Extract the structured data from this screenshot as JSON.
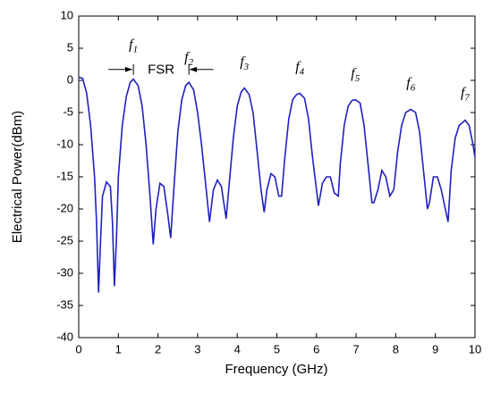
{
  "chart_data": {
    "type": "line",
    "x_label": "Frequency (GHz)",
    "y_label": "Electrical Power(dBm)",
    "xlim": [
      0,
      10
    ],
    "xticks": [
      0,
      1,
      2,
      3,
      4,
      5,
      6,
      7,
      8,
      9,
      10
    ],
    "ylim": [
      -40,
      10
    ],
    "yticks": [
      -40,
      -35,
      -30,
      -25,
      -20,
      -15,
      -10,
      -5,
      0,
      5,
      10
    ],
    "series": [
      {
        "color": "#2020c0",
        "x": [
          0,
          0.1,
          0.2,
          0.3,
          0.4,
          0.45,
          0.5,
          0.55,
          0.6,
          0.7,
          0.8,
          0.85,
          0.9,
          0.95,
          1.0,
          1.1,
          1.2,
          1.3,
          1.38,
          1.5,
          1.6,
          1.7,
          1.8,
          1.88,
          1.95,
          2.05,
          2.15,
          2.25,
          2.32,
          2.4,
          2.5,
          2.6,
          2.7,
          2.78,
          2.9,
          3.0,
          3.1,
          3.2,
          3.3,
          3.4,
          3.5,
          3.6,
          3.72,
          3.8,
          3.9,
          4.0,
          4.1,
          4.18,
          4.3,
          4.4,
          4.5,
          4.6,
          4.68,
          4.75,
          4.85,
          4.95,
          5.05,
          5.12,
          5.2,
          5.3,
          5.4,
          5.5,
          5.58,
          5.7,
          5.8,
          5.9,
          6.0,
          6.05,
          6.15,
          6.25,
          6.35,
          6.45,
          6.55,
          6.6,
          6.7,
          6.8,
          6.9,
          6.98,
          7.1,
          7.2,
          7.3,
          7.4,
          7.45,
          7.55,
          7.65,
          7.75,
          7.85,
          7.95,
          8.05,
          8.15,
          8.25,
          8.38,
          8.5,
          8.6,
          8.7,
          8.8,
          8.85,
          8.95,
          9.05,
          9.15,
          9.25,
          9.32,
          9.4,
          9.5,
          9.6,
          9.7,
          9.75,
          9.85,
          9.95,
          10
        ],
        "values": [
          0.5,
          0.3,
          -2,
          -7,
          -15,
          -22,
          -33,
          -25,
          -18,
          -15.8,
          -16.5,
          -22,
          -32,
          -25,
          -15,
          -7,
          -2.5,
          -0.3,
          0.2,
          -0.8,
          -4,
          -10,
          -18,
          -25.5,
          -20,
          -16,
          -16.5,
          -21,
          -24.5,
          -17,
          -8,
          -3,
          -0.8,
          -0.3,
          -1.5,
          -5,
          -10,
          -16,
          -22,
          -17,
          -15.5,
          -16.5,
          -21.5,
          -16,
          -9,
          -4,
          -1.8,
          -1.2,
          -2.2,
          -5,
          -11,
          -17,
          -20.5,
          -17,
          -14.5,
          -15,
          -18,
          -18,
          -12,
          -6,
          -3,
          -2.2,
          -2,
          -2.8,
          -6,
          -12,
          -17,
          -19.5,
          -16,
          -15,
          -15,
          -17.5,
          -18,
          -13,
          -7,
          -4,
          -3.1,
          -3,
          -3.5,
          -7,
          -13,
          -19,
          -19,
          -17,
          -14,
          -15,
          -18,
          -17,
          -11,
          -7,
          -5,
          -4.5,
          -5,
          -8,
          -14,
          -20,
          -19,
          -15,
          -15,
          -17,
          -20,
          -22,
          -14,
          -9,
          -7,
          -6.5,
          -6.2,
          -7,
          -10,
          -12
        ]
      }
    ],
    "annotations": [
      {
        "text": "f",
        "subscript": "1",
        "x": 1.38,
        "y": 5.5
      },
      {
        "text": "f",
        "subscript": "2",
        "x": 2.78,
        "y": 3.5
      },
      {
        "text": "f",
        "subscript": "3",
        "x": 4.18,
        "y": 2.8
      },
      {
        "text": "f",
        "subscript": "4",
        "x": 5.58,
        "y": 2
      },
      {
        "text": "f",
        "subscript": "5",
        "x": 6.98,
        "y": 1
      },
      {
        "text": "f",
        "subscript": "6",
        "x": 8.38,
        "y": -0.5
      },
      {
        "text": "f",
        "subscript": "7",
        "x": 9.75,
        "y": -2
      },
      {
        "text": "FSR",
        "x": 2.08,
        "y": 1.6
      }
    ]
  }
}
